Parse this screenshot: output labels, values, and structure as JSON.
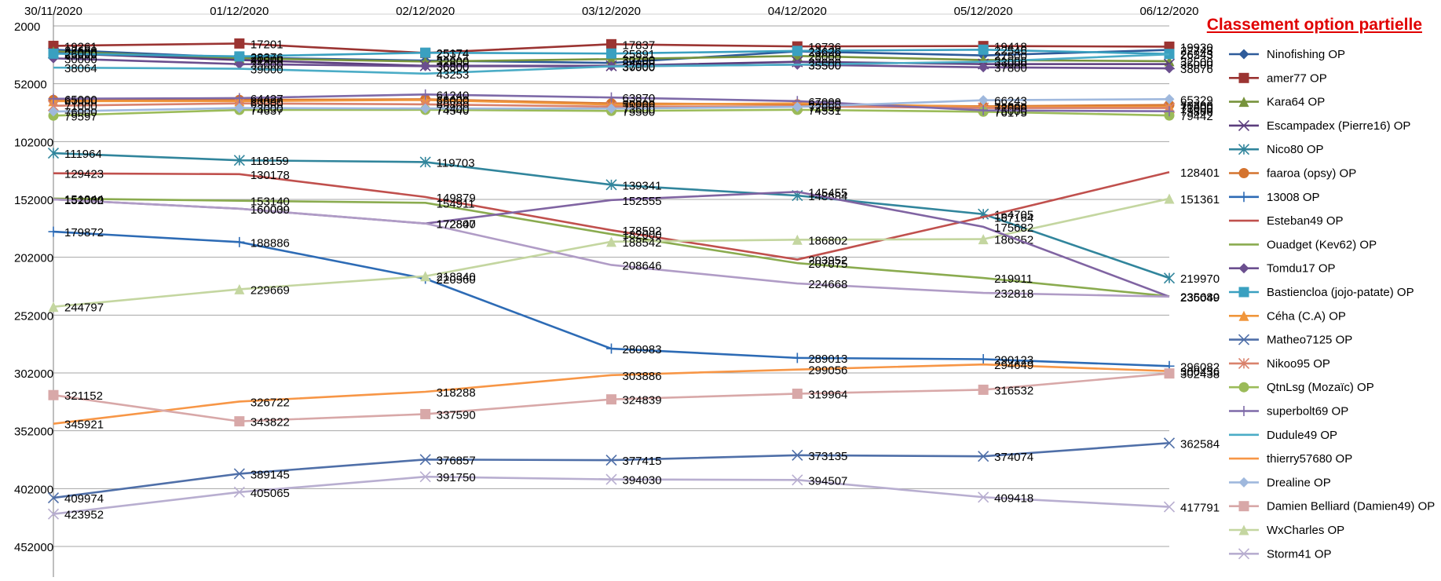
{
  "chart_data": {
    "type": "line",
    "title": "Classement option partielle",
    "y_axis": {
      "min": 2000,
      "max": 452000,
      "ticks": [
        2000,
        52000,
        102000,
        152000,
        202000,
        252000,
        302000,
        352000,
        402000,
        452000
      ],
      "inverted": true
    },
    "x": [
      "30/11/2020",
      "01/12/2020",
      "02/12/2020",
      "03/12/2020",
      "04/12/2020",
      "05/12/2020",
      "06/12/2020"
    ],
    "grid": true,
    "legend_position": "right",
    "series": [
      {
        "name": "Ninofishing OP",
        "color": "#2e5b9a",
        "marker": "diamond",
        "values": [
          22600,
          29300,
          32000,
          34000,
          24000,
          27500,
          22743
        ]
      },
      {
        "name": "amer77 OP",
        "color": "#9b3432",
        "marker": "square",
        "values": [
          19261,
          17201,
          25374,
          17837,
          19736,
          19418,
          19930
        ]
      },
      {
        "name": "Kara64  OP",
        "color": "#77933c",
        "marker": "triangle",
        "values": [
          24000,
          30000,
          32800,
          30700,
          28000,
          31500,
          32500
        ]
      },
      {
        "name": "Escampadex (Pierre16) OP",
        "color": "#5b3d7d",
        "marker": "x",
        "values": [
          25500,
          31500,
          36500,
          36500,
          33000,
          35000,
          35000
        ]
      },
      {
        "name": "Nico80 OP",
        "color": "#31859c",
        "marker": "star",
        "values": [
          111964,
          118159,
          119703,
          139341,
          148684,
          164705,
          219970
        ]
      },
      {
        "name": "faaroa (opsy) OP",
        "color": "#d4732e",
        "marker": "circle",
        "values": [
          66000,
          66000,
          65400,
          69000,
          69800,
          71500,
          70300
        ]
      },
      {
        "name": "13008 OP",
        "color": "#2d6bb5",
        "marker": "plus",
        "values": [
          179872,
          188886,
          220560,
          280983,
          289013,
          290123,
          296082
        ]
      },
      {
        "name": "Esteban49 OP",
        "color": "#c0504d",
        "marker": "none",
        "values": [
          129423,
          130178,
          149879,
          178592,
          203952,
          167164,
          128401
        ]
      },
      {
        "name": "Ouadget (Kev62) OP",
        "color": "#8aab4f",
        "marker": "none",
        "values": [
          151244,
          153140,
          154911,
          182000,
          207075,
          219911,
          235680
        ]
      },
      {
        "name": "Tomdu17 OP",
        "color": "#6b4f8f",
        "marker": "diamond",
        "values": [
          30000,
          35000,
          36800,
          36900,
          35500,
          37800,
          38676
        ]
      },
      {
        "name": "Bastiencloa (jojo-patate) OP",
        "color": "#3aa0c0",
        "marker": "square",
        "values": [
          26000,
          28376,
          25174,
          25891,
          23626,
          22546,
          26245
        ]
      },
      {
        "name": "Céha (C.A) OP",
        "color": "#f0963c",
        "marker": "triangle",
        "values": [
          67000,
          67000,
          66000,
          70000,
          69000,
          72000,
          71800
        ]
      },
      {
        "name": "Matheo7125 OP",
        "color": "#4f6fa8",
        "marker": "x",
        "values": [
          409974,
          389145,
          376857,
          377415,
          373135,
          374074,
          362584
        ]
      },
      {
        "name": "Nikoo95 OP",
        "color": "#d9826d",
        "marker": "star",
        "values": [
          71000,
          69000,
          69800,
          71800,
          71500,
          73000,
          73000
        ]
      },
      {
        "name": "QtnLsg (Mozaïc) OP",
        "color": "#9bbb59",
        "marker": "circle",
        "values": [
          79597,
          74637,
          74540,
          75500,
          74531,
          76175,
          79442
        ]
      },
      {
        "name": "superbolt69 OP",
        "color": "#7e6aa8",
        "marker": "plus",
        "values": [
          65000,
          64427,
          61240,
          63870,
          67000,
          75000,
          75800
        ]
      },
      {
        "name": "Dudule49 OP",
        "color": "#4bacc6",
        "marker": "none",
        "values": [
          38064,
          39000,
          43253,
          37000,
          35500,
          33000,
          26543
        ]
      },
      {
        "name": "thierry57680 OP",
        "color": "#f79646",
        "marker": "none",
        "values": [
          345921,
          326722,
          318288,
          303886,
          299056,
          294649,
          300436
        ]
      },
      {
        "name": "Drealine OP",
        "color": "#9fb8dd",
        "marker": "diamond",
        "values": [
          76000,
          73000,
          73400,
          73500,
          72000,
          66243,
          65329
        ]
      },
      {
        "name": "Damien Belliard (Damien49) OP",
        "color": "#d8a8a8",
        "marker": "square",
        "values": [
          321152,
          343822,
          337590,
          324839,
          319964,
          316532,
          302438
        ]
      },
      {
        "name": "WxCharles OP",
        "color": "#c4d6a0",
        "marker": "triangle",
        "values": [
          244797,
          229669,
          218340,
          188542,
          186802,
          186352,
          151361
        ]
      },
      {
        "name": "Storm41 OP",
        "color": "#b8aed0",
        "marker": "x",
        "values": [
          423952,
          405065,
          391750,
          394030,
          394507,
          409418,
          417791
        ]
      },
      {
        "name": "",
        "color": "#8064a2",
        "marker": "none",
        "values": [
          151932,
          160039,
          172847,
          152555,
          145455,
          175682,
          236049
        ]
      },
      {
        "name": "",
        "color": "#b09cc6",
        "marker": "none",
        "values": [
          152000,
          160000,
          172800,
          208646,
          224668,
          232818,
          236049
        ]
      }
    ]
  }
}
